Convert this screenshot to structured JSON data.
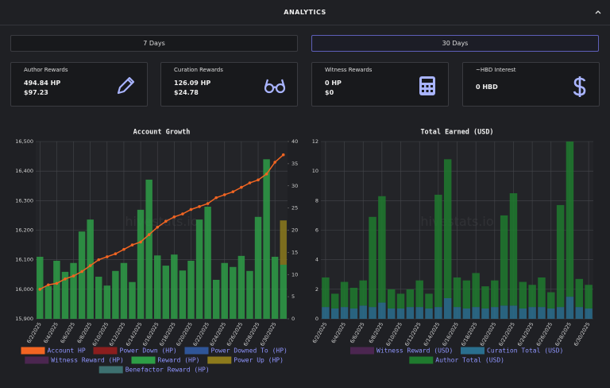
{
  "header": {
    "title": "ANALYTICS"
  },
  "buttons": [
    "7 Days",
    "30 Days"
  ],
  "active_button": 1,
  "cards": [
    {
      "label": "Author Rewards",
      "lines": [
        "494.84 HP",
        "$97.23"
      ]
    },
    {
      "label": "Curation Rewards",
      "lines": [
        "126.09 HP",
        "$24.78"
      ]
    },
    {
      "label": "Witness Rewards",
      "lines": [
        "0 HP",
        "$0"
      ]
    },
    {
      "label": "~HBD Interest",
      "lines": [
        "0 HBD"
      ]
    }
  ],
  "chart_data": [
    {
      "type": "bar",
      "title": "Account Growth",
      "watermark": "hivestats.io",
      "grid": true,
      "categories": [
        "6/2/2025",
        null,
        "6/4/2025",
        null,
        "6/6/2025",
        null,
        "6/8/2025",
        null,
        "6/10/2025",
        null,
        "6/12/2025",
        null,
        "6/14/2025",
        null,
        "6/16/2025",
        null,
        "6/18/2025",
        null,
        "6/20/2025",
        null,
        "6/22/2025",
        null,
        "6/24/2025",
        null,
        "6/26/2025",
        null,
        "6/28/2025",
        null,
        "6/30/2025",
        null
      ],
      "ylim": [
        15900,
        16500
      ],
      "yticks": [
        {
          "value": 15900,
          "label": "15,900"
        },
        {
          "value": 16000,
          "label": "16,000"
        },
        {
          "value": 16100,
          "label": "16,100"
        },
        {
          "value": 16200,
          "label": "16,200"
        },
        {
          "value": 16300,
          "label": "16,300"
        },
        {
          "value": 16400,
          "label": "16,400"
        },
        {
          "value": 16500,
          "label": "16,500"
        }
      ],
      "y2lim": [
        0,
        40
      ],
      "y2ticks": [
        0,
        5,
        10,
        15,
        20,
        25,
        30,
        35,
        40
      ],
      "series": [
        {
          "name": "Account HP",
          "type": "line",
          "color": "#f26522",
          "values": [
            16000,
            16015,
            16020,
            16035,
            16045,
            16060,
            16080,
            16100,
            16110,
            16120,
            16135,
            16150,
            16160,
            16185,
            16210,
            16230,
            16245,
            16255,
            16270,
            16280,
            16290,
            16310,
            16320,
            16330,
            16345,
            16360,
            16370,
            16390,
            16430,
            16455
          ]
        },
        {
          "name": "Power Down (HP)",
          "type": "bar",
          "axis": "y2",
          "color": "#8b1e1e",
          "values": [
            0,
            0,
            0,
            0,
            0,
            0,
            0,
            0,
            0,
            0,
            0,
            0,
            0,
            0,
            0,
            0,
            0,
            0,
            0,
            0,
            0,
            0,
            0,
            0,
            0,
            0,
            0,
            0,
            0,
            0
          ]
        },
        {
          "name": "Power Downed To (HP)",
          "type": "bar",
          "axis": "y2",
          "color": "#2f5597",
          "values": [
            0,
            0,
            0,
            0,
            0,
            0,
            0,
            0,
            0,
            0,
            0,
            0,
            0,
            0,
            0,
            0,
            0,
            0,
            0,
            0,
            0,
            0,
            0,
            0,
            0,
            0,
            0,
            0,
            0,
            0
          ]
        },
        {
          "name": "Witness Reward (HP)",
          "type": "bar",
          "axis": "y2",
          "color": "#4b2650",
          "values": [
            0,
            0,
            0,
            0,
            0,
            0,
            0,
            0,
            0,
            0,
            0,
            0,
            0,
            0,
            0,
            0,
            0,
            0,
            0,
            0,
            0,
            0,
            0,
            0,
            0,
            0,
            0,
            0,
            0,
            0
          ]
        },
        {
          "name": "Reward (HP)",
          "type": "bar",
          "axis": "y2",
          "color": "#2e9e46",
          "values": [
            14,
            7.4,
            13.1,
            10.6,
            12.6,
            19.7,
            22.4,
            9.5,
            7.5,
            10.8,
            12.6,
            8.3,
            24.6,
            31.4,
            14.3,
            12,
            14.5,
            10.9,
            13.1,
            22.4,
            25.3,
            8.8,
            12.6,
            11.7,
            14.2,
            10.8,
            23,
            36,
            14,
            12.2
          ]
        },
        {
          "name": "Power Up (HP)",
          "type": "bar",
          "axis": "y2",
          "color": "#8c7a1c",
          "values": [
            0,
            0,
            0,
            0,
            0,
            0,
            0,
            0,
            0,
            0,
            0,
            0,
            0,
            0,
            0,
            0,
            0,
            0,
            0,
            0,
            0,
            0,
            0,
            0,
            0,
            0,
            0,
            0,
            0,
            10
          ]
        },
        {
          "name": "Benefactor Reward (HP)",
          "type": "bar",
          "axis": "y2",
          "color": "#3d7070",
          "values": [
            0,
            0,
            0,
            0,
            0,
            0,
            0,
            0,
            0,
            0,
            0,
            0,
            0,
            0,
            0,
            0,
            0,
            0,
            0,
            0,
            0,
            0,
            0,
            0,
            0,
            0,
            0,
            0,
            0,
            0
          ]
        }
      ]
    },
    {
      "type": "bar",
      "title": "Total Earned (USD)",
      "watermark": "hivestats.io",
      "grid": true,
      "categories": [
        "6/2/2025",
        null,
        "6/4/2025",
        null,
        "6/6/2025",
        null,
        "6/8/2025",
        null,
        "6/10/2025",
        null,
        "6/12/2025",
        null,
        "6/14/2025",
        null,
        "6/16/2025",
        null,
        "6/18/2025",
        null,
        "6/20/2025",
        null,
        "6/22/2025",
        null,
        "6/24/2025",
        null,
        "6/26/2025",
        null,
        "6/28/2025",
        null,
        "6/30/2025"
      ],
      "ylim": [
        0,
        12
      ],
      "yticks": [
        0,
        2,
        4,
        6,
        8,
        10,
        12
      ],
      "series": [
        {
          "name": "Witness Reward (USD)",
          "type": "bar",
          "color": "#4b2650",
          "values": [
            0,
            0,
            0,
            0,
            0,
            0,
            0,
            0,
            0,
            0,
            0,
            0,
            0,
            0,
            0,
            0,
            0,
            0,
            0,
            0,
            0,
            0,
            0,
            0,
            0,
            0,
            0,
            0,
            0
          ]
        },
        {
          "name": "Curation Total (USD)",
          "type": "bar",
          "color": "#2a6f8e",
          "values": [
            0.8,
            0.7,
            0.8,
            0.7,
            0.9,
            0.8,
            1.1,
            0.7,
            0.7,
            0.8,
            0.8,
            0.7,
            0.8,
            1.4,
            0.8,
            0.7,
            0.8,
            0.7,
            0.8,
            0.9,
            0.9,
            0.7,
            0.8,
            0.8,
            0.7,
            0.8,
            1.5,
            0.8,
            0.7
          ]
        },
        {
          "name": "Author Total (USD)",
          "type": "bar",
          "color": "#1f7a2e",
          "values": [
            2.0,
            1.0,
            1.7,
            1.4,
            1.7,
            6.1,
            7.2,
            1.3,
            1.0,
            1.2,
            1.8,
            1.0,
            7.6,
            9.4,
            2.0,
            1.9,
            2.3,
            1.5,
            1.8,
            6.1,
            7.6,
            1.8,
            1.5,
            2.0,
            1.1,
            6.9,
            10.5,
            1.9,
            1.6
          ]
        }
      ]
    }
  ]
}
